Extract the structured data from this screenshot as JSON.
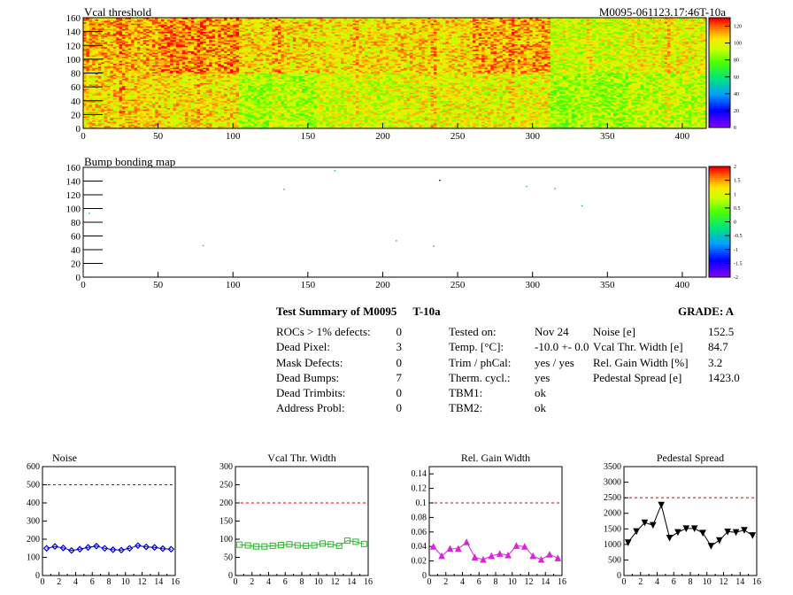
{
  "header": {
    "map1_title": "Vcal threshold",
    "module_tag": "M0095-061123.17:46T-10a",
    "map2_title": "Bump bonding map"
  },
  "chart_data": [
    {
      "type": "heatmap",
      "title": "Vcal threshold",
      "x_ticks": [
        "0",
        "50",
        "100",
        "150",
        "200",
        "250",
        "300",
        "350",
        "400"
      ],
      "y_ticks": [
        "0",
        "20",
        "40",
        "60",
        "80",
        "100",
        "120",
        "140",
        "160"
      ],
      "xlim": [
        0,
        416
      ],
      "ylim": [
        0,
        160
      ],
      "colorbar": {
        "ticks": [
          "0",
          "20",
          "40",
          "60",
          "80",
          "100",
          "120"
        ],
        "range": [
          0,
          130
        ]
      },
      "roc_grid": {
        "columns": 8,
        "rows": 2,
        "col_width": 52,
        "row_height": 80
      },
      "roc_mean_levels": [
        [
          112,
          116,
          106,
          104,
          106,
          112,
          96,
          100
        ],
        [
          106,
          104,
          90,
          96,
          100,
          100,
          88,
          92
        ]
      ]
    },
    {
      "type": "scatter",
      "title": "Bump bonding map",
      "x_ticks": [
        "0",
        "50",
        "100",
        "150",
        "200",
        "250",
        "300",
        "350",
        "400"
      ],
      "y_ticks": [
        "0",
        "20",
        "40",
        "60",
        "80",
        "100",
        "120",
        "140",
        "160"
      ],
      "xlim": [
        0,
        416
      ],
      "ylim": [
        0,
        160
      ],
      "colorbar": {
        "ticks": [
          "-2",
          "-1.5",
          "-1",
          "-0.5",
          "0",
          "0.5",
          "1",
          "1.5",
          "2"
        ],
        "range": [
          -2,
          2
        ]
      },
      "points": [
        {
          "x": 4,
          "y": 93
        },
        {
          "x": 80,
          "y": 46
        },
        {
          "x": 134,
          "y": 128
        },
        {
          "x": 168,
          "y": 155
        },
        {
          "x": 209,
          "y": 53
        },
        {
          "x": 234,
          "y": 45
        },
        {
          "x": 238,
          "y": 141
        },
        {
          "x": 296,
          "y": 132
        },
        {
          "x": 315,
          "y": 129
        },
        {
          "x": 333,
          "y": 104
        }
      ]
    },
    {
      "type": "line",
      "title": "Noise",
      "x_ticks": [
        "0",
        "2",
        "4",
        "6",
        "8",
        "10",
        "12",
        "14",
        "16"
      ],
      "y_ticks": [
        "0",
        "100",
        "200",
        "300",
        "400",
        "500",
        "600"
      ],
      "xlim": [
        0,
        16
      ],
      "ylim": [
        0,
        600
      ],
      "threshold": 500,
      "color": "#0000cc",
      "marker": "diamond",
      "x": [
        0.5,
        1.5,
        2.5,
        3.5,
        4.5,
        5.5,
        6.5,
        7.5,
        8.5,
        9.5,
        10.5,
        11.5,
        12.5,
        13.5,
        14.5,
        15.5
      ],
      "y": [
        150,
        160,
        152,
        138,
        145,
        155,
        162,
        150,
        142,
        140,
        150,
        165,
        158,
        155,
        148,
        145
      ]
    },
    {
      "type": "line",
      "title": "Vcal Thr. Width",
      "x_ticks": [
        "0",
        "2",
        "4",
        "6",
        "8",
        "10",
        "12",
        "14",
        "16"
      ],
      "y_ticks": [
        "0",
        "50",
        "100",
        "150",
        "200",
        "250",
        "300"
      ],
      "xlim": [
        0,
        16
      ],
      "ylim": [
        0,
        300
      ],
      "threshold": 200,
      "color": "#22bb22",
      "marker": "square",
      "x": [
        0.5,
        1.5,
        2.5,
        3.5,
        4.5,
        5.5,
        6.5,
        7.5,
        8.5,
        9.5,
        10.5,
        11.5,
        12.5,
        13.5,
        14.5,
        15.5
      ],
      "y": [
        85,
        83,
        80,
        80,
        82,
        84,
        86,
        83,
        82,
        83,
        88,
        86,
        82,
        96,
        93,
        87
      ]
    },
    {
      "type": "line",
      "title": "Rel. Gain Width",
      "x_ticks": [
        "0",
        "2",
        "4",
        "6",
        "8",
        "10",
        "12",
        "14",
        "16"
      ],
      "y_ticks": [
        "0",
        "0.02",
        "0.04",
        "0.06",
        "0.08",
        "0.1",
        "0.12",
        "0.14"
      ],
      "xlim": [
        0,
        16
      ],
      "ylim": [
        0,
        0.15
      ],
      "threshold": 0.1,
      "color": "#dd22dd",
      "marker": "triangle-up",
      "x": [
        0.5,
        1.5,
        2.5,
        3.5,
        4.5,
        5.5,
        6.5,
        7.5,
        8.5,
        9.5,
        10.5,
        11.5,
        12.5,
        13.5,
        14.5,
        15.5
      ],
      "y": [
        0.04,
        0.027,
        0.037,
        0.037,
        0.046,
        0.025,
        0.022,
        0.027,
        0.03,
        0.028,
        0.041,
        0.04,
        0.027,
        0.022,
        0.029,
        0.024
      ]
    },
    {
      "type": "line",
      "title": "Pedestal Spread",
      "x_ticks": [
        "0",
        "2",
        "4",
        "6",
        "8",
        "10",
        "12",
        "14",
        "16"
      ],
      "y_ticks": [
        "0",
        "500",
        "1000",
        "1500",
        "2000",
        "2500",
        "3000",
        "3500"
      ],
      "xlim": [
        0,
        16
      ],
      "ylim": [
        0,
        3500
      ],
      "threshold": 2500,
      "color": "#000000",
      "marker": "triangle-down",
      "x": [
        0.5,
        1.5,
        2.5,
        3.5,
        4.5,
        5.5,
        6.5,
        7.5,
        8.5,
        9.5,
        10.5,
        11.5,
        12.5,
        13.5,
        14.5,
        15.5
      ],
      "y": [
        1060,
        1420,
        1700,
        1620,
        2270,
        1210,
        1390,
        1510,
        1510,
        1370,
        950,
        1130,
        1410,
        1390,
        1460,
        1290
      ]
    }
  ],
  "summary": {
    "title": "Test Summary of M0095",
    "tag": "T-10a",
    "grade": "GRADE:  A",
    "defects": [
      {
        "label": "ROCs > 1% defects:",
        "value": "0"
      },
      {
        "label": "Dead Pixel:",
        "value": "3"
      },
      {
        "label": "Mask Defects:",
        "value": "0"
      },
      {
        "label": "Dead Bumps:",
        "value": "7"
      },
      {
        "label": "Dead Trimbits:",
        "value": "0"
      },
      {
        "label": "Address Probl:",
        "value": "0"
      }
    ],
    "conditions": [
      {
        "label": "Tested on:",
        "value": "Nov 24"
      },
      {
        "label": "Temp. [°C]:",
        "value": "-10.0 +- 0.0"
      },
      {
        "label": "Trim / phCal:",
        "value": "yes / yes"
      },
      {
        "label": "Therm. cycl.:",
        "value": "yes"
      },
      {
        "label": "TBM1:",
        "value": "ok"
      },
      {
        "label": "TBM2:",
        "value": "ok"
      }
    ],
    "results": [
      {
        "label": "Noise [e]",
        "value": "152.5"
      },
      {
        "label": "Vcal Thr. Width [e]",
        "value": "84.7"
      },
      {
        "label": "Rel. Gain Width [%]",
        "value": "3.2"
      },
      {
        "label": "Pedestal Spread [e]",
        "value": "1423.0"
      }
    ]
  }
}
